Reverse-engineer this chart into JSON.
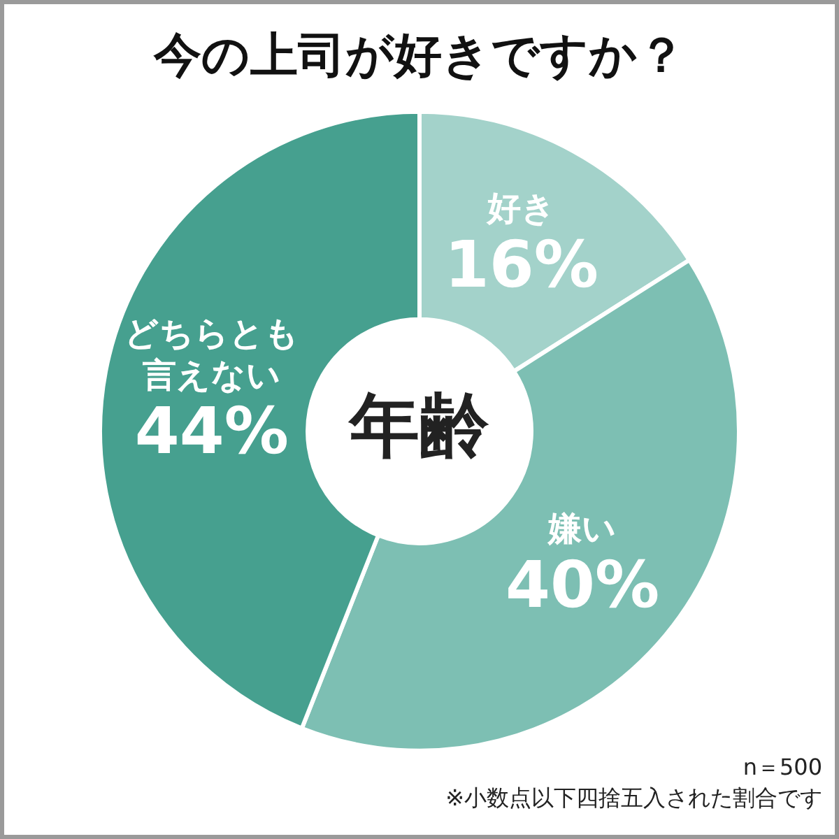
{
  "chart_data": {
    "type": "donut",
    "title": "今の上司が好きですか？",
    "categories": [
      "好き",
      "嫌い",
      "どちらとも言えない"
    ],
    "values": [
      16,
      40,
      44
    ],
    "value_labels": [
      "16%",
      "40%",
      "44%"
    ],
    "colors": [
      "#a3d2ca",
      "#7dbfb3",
      "#46a08f"
    ],
    "annotations": [
      "年齢",
      "n＝500",
      "※小数点以下四捨五入された割合です"
    ],
    "legend": false
  }
}
